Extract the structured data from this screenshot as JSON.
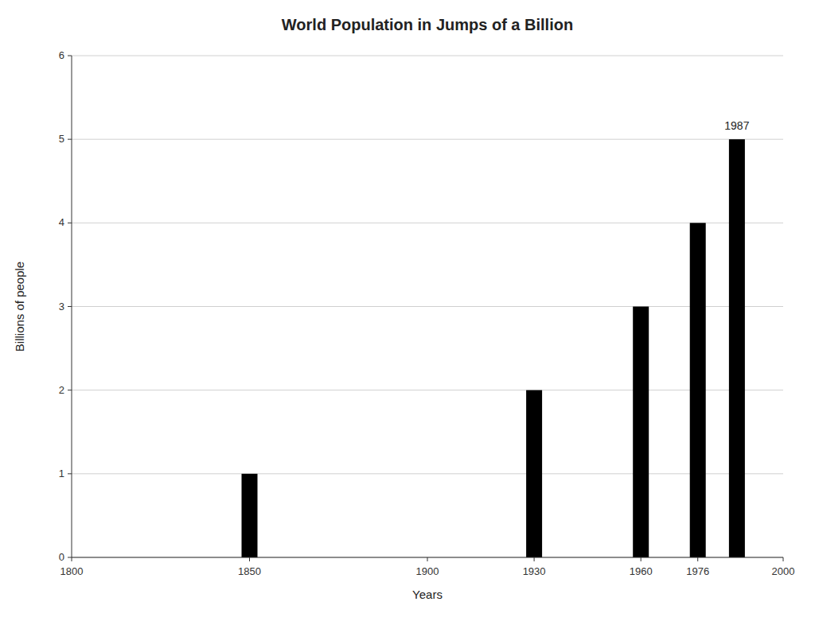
{
  "chart_data": {
    "type": "bar",
    "title": "World Population in Jumps of a Billion",
    "x_label": "Years",
    "y_label": "Billions of people",
    "x": [
      1850,
      1930,
      1960,
      1976,
      1987
    ],
    "values": [
      1,
      2,
      3,
      4,
      5
    ],
    "color": "#000000",
    "xlim": [
      1800,
      2000
    ],
    "xticks": [
      1800,
      1850,
      1900,
      1930,
      1960,
      1976,
      2000
    ],
    "ylim": [
      0,
      6
    ],
    "yticks": [
      0,
      1,
      2,
      3,
      4,
      5,
      6
    ],
    "grid": true,
    "annotations": [
      {
        "text": "1987",
        "x": 1987,
        "y": 5.08
      }
    ]
  }
}
